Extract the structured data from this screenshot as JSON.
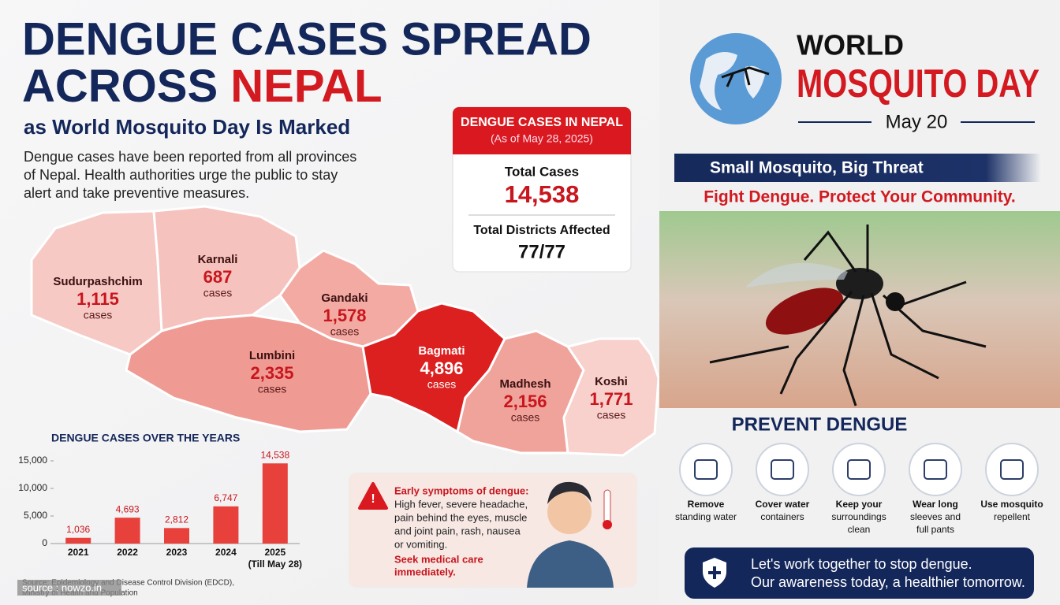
{
  "header": {
    "title_line1": "DENGUE CASES SPREAD",
    "title_line2a": "ACROSS",
    "title_line2b": "NEPAL",
    "subtitle": "as World Mosquito Day Is Marked",
    "intro": [
      "Dengue cases have been reported from all provinces",
      "of Nepal. Health authorities urge the public to stay",
      "alert and take preventive measures."
    ]
  },
  "map": {
    "provinces": [
      {
        "name": "Sudurpashchim",
        "cases": "1,115",
        "unit": "cases",
        "color": "#f7c9c5"
      },
      {
        "name": "Karnali",
        "cases": "687",
        "unit": "cases",
        "color": "#f6c2bd"
      },
      {
        "name": "Gandaki",
        "cases": "1,578",
        "unit": "cases",
        "color": "#f3aaa3"
      },
      {
        "name": "Lumbini",
        "cases": "2,335",
        "unit": "cases",
        "color": "#ef9b93"
      },
      {
        "name": "Bagmati",
        "cases": "4,896",
        "unit": "cases",
        "color": "#dc1f1f"
      },
      {
        "name": "Madhesh",
        "cases": "2,156",
        "unit": "cases",
        "color": "#f0a39b"
      },
      {
        "name": "Koshi",
        "cases": "1,771",
        "unit": "cases",
        "color": "#f8d0cc"
      }
    ]
  },
  "summary": {
    "title": "DENGUE CASES IN NEPAL",
    "as_of": "(As of May 28, 2025)",
    "total_label": "Total Cases",
    "total_value": "14,538",
    "districts_label": "Total Districts Affected",
    "districts_value": "77/77"
  },
  "chart_data": {
    "type": "bar",
    "title": "DENGUE CASES OVER THE YEARS",
    "categories": [
      "2021",
      "2022",
      "2023",
      "2024",
      "2025"
    ],
    "category_note": "(Till May 28)",
    "values": [
      1036,
      4693,
      2812,
      6747,
      14538
    ],
    "value_labels": [
      "1,036",
      "4,693",
      "2,812",
      "6,747",
      "14,538"
    ],
    "color": "#e8413c",
    "ylim": [
      0,
      15000
    ],
    "yticks": [
      0,
      {
        "value": 5000,
        "label": "5,000"
      },
      {
        "value": 10000,
        "label": "10,000"
      },
      {
        "value": 15000,
        "label": "15,000"
      }
    ],
    "source": [
      "Source: Epidemiology and Disease Control Division (EDCD),",
      "Ministry of Health and Population"
    ]
  },
  "symptoms": {
    "heading": "Early symptoms of dengue:",
    "lines": [
      "High fever, severe headache,",
      "pain behind the eyes, muscle",
      "and joint pain, rash, nausea",
      "or vomiting."
    ],
    "action": [
      "Seek medical care",
      "immediately."
    ]
  },
  "campaign": {
    "title1": "WORLD",
    "title2": "MOSQUITO DAY",
    "date": "May 20",
    "banner": "Small Mosquito, Big Threat",
    "slogan": "Fight Dengue. Protect Your Community."
  },
  "prevent": {
    "title": "PREVENT DENGUE",
    "items": [
      {
        "lines": [
          "Remove",
          "standing water"
        ]
      },
      {
        "lines": [
          "Cover water",
          "containers"
        ]
      },
      {
        "lines": [
          "Keep your",
          "surroundings",
          "clean"
        ]
      },
      {
        "lines": [
          "Wear long",
          "sleeves and",
          "full pants"
        ]
      },
      {
        "lines": [
          "Use mosquito",
          "repellent"
        ]
      }
    ]
  },
  "footer": {
    "line1": "Let's work together to stop dengue.",
    "line2": "Our awareness today, a healthier tomorrow."
  },
  "watermark": "source : nowzo.in"
}
